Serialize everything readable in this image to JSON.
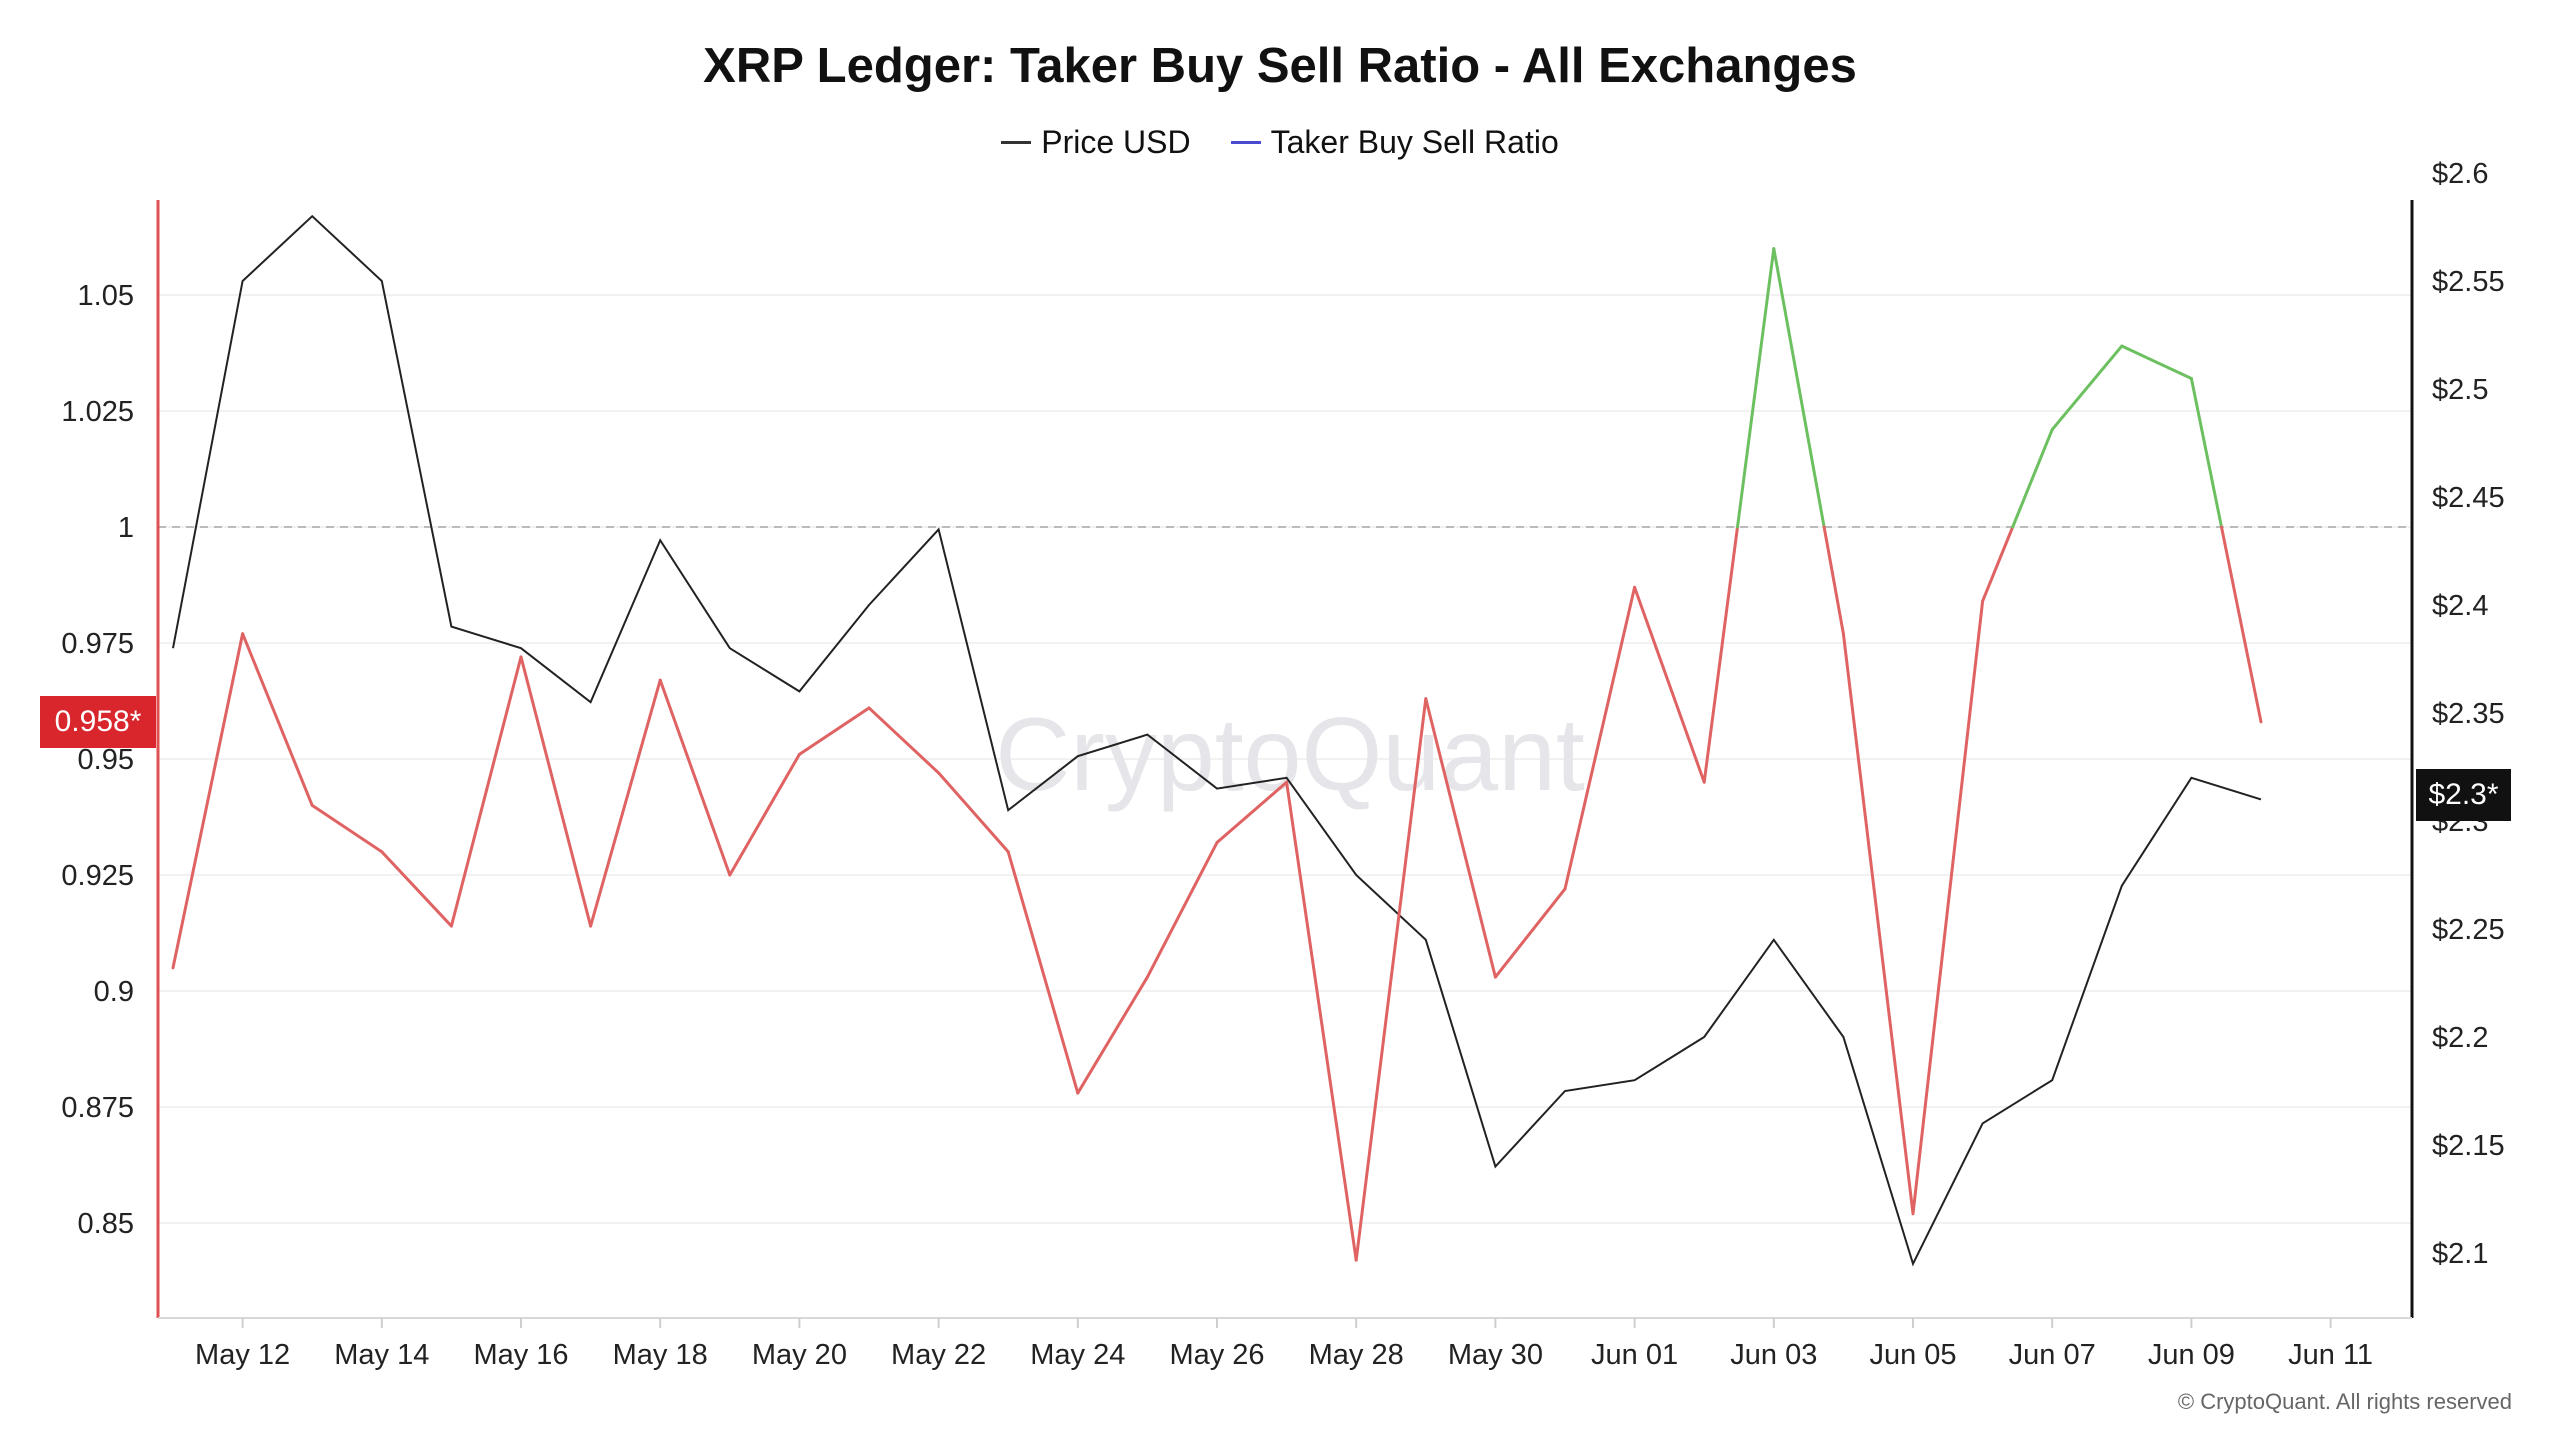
{
  "title": "XRP Ledger: Taker Buy Sell Ratio - All Exchanges",
  "legend": [
    {
      "label": "Price USD",
      "color": "#333333"
    },
    {
      "label": "Taker Buy Sell Ratio",
      "color": "#4a4ad0"
    }
  ],
  "watermark": "CryptoQuant",
  "copyright": "© CryptoQuant. All rights reserved",
  "badges": {
    "ratio_current": "0.958*",
    "price_current": "$2.3*"
  },
  "colors": {
    "ratio_below_one": "#e06363",
    "ratio_above_one": "#6cc060",
    "price_line": "#222222",
    "left_axis": "#e05050",
    "right_axis": "#111111",
    "reference_line": "#bbbbbb"
  },
  "chart_data": {
    "type": "line",
    "x": [
      "May 11",
      "May 12",
      "May 13",
      "May 14",
      "May 15",
      "May 16",
      "May 17",
      "May 18",
      "May 19",
      "May 20",
      "May 21",
      "May 22",
      "May 23",
      "May 24",
      "May 25",
      "May 26",
      "May 27",
      "May 28",
      "May 29",
      "May 30",
      "May 31",
      "Jun 01",
      "Jun 02",
      "Jun 03",
      "Jun 04",
      "Jun 05",
      "Jun 06",
      "Jun 07",
      "Jun 08",
      "Jun 09",
      "Jun 10"
    ],
    "x_tick_labels": [
      "May 12",
      "May 14",
      "May 16",
      "May 18",
      "May 20",
      "May 22",
      "May 24",
      "May 26",
      "May 28",
      "May 30",
      "Jun 01",
      "Jun 03",
      "Jun 05",
      "Jun 07",
      "Jun 09",
      "Jun 11"
    ],
    "series": [
      {
        "name": "Taker Buy Sell Ratio",
        "axis": "left",
        "values": [
          0.905,
          0.977,
          0.94,
          0.93,
          0.914,
          0.972,
          0.914,
          0.967,
          0.925,
          0.951,
          0.961,
          0.947,
          0.93,
          0.878,
          0.903,
          0.932,
          0.945,
          0.842,
          0.963,
          0.903,
          0.922,
          0.987,
          0.945,
          1.06,
          0.977,
          0.852,
          0.984,
          1.021,
          1.039,
          1.032,
          0.958
        ]
      },
      {
        "name": "Price USD",
        "axis": "right",
        "values": [
          2.38,
          2.55,
          2.58,
          2.55,
          2.39,
          2.38,
          2.355,
          2.43,
          2.38,
          2.36,
          2.4,
          2.435,
          2.305,
          2.33,
          2.34,
          2.315,
          2.32,
          2.275,
          2.245,
          2.14,
          2.175,
          2.18,
          2.2,
          2.245,
          2.2,
          2.095,
          2.16,
          2.18,
          2.27,
          2.32,
          2.31
        ]
      }
    ],
    "y_left": {
      "ticks": [
        0.85,
        0.875,
        0.9,
        0.925,
        0.95,
        0.975,
        1,
        1.025,
        1.05
      ],
      "tick_labels": [
        "0.85",
        "0.875",
        "0.9",
        "0.925",
        "0.95",
        "0.975",
        "1",
        "1.025",
        "1.05"
      ],
      "reference_line": 1
    },
    "y_right": {
      "ticks": [
        2.1,
        2.15,
        2.2,
        2.25,
        2.3,
        2.35,
        2.4,
        2.45,
        2.5,
        2.55,
        2.6
      ],
      "tick_labels": [
        "$2.1",
        "$2.15",
        "$2.2",
        "$2.25",
        "$2.3",
        "$2.35",
        "$2.4",
        "$2.45",
        "$2.5",
        "$2.55",
        "$2.6"
      ]
    },
    "grid": true,
    "legend_position": "top-center"
  }
}
